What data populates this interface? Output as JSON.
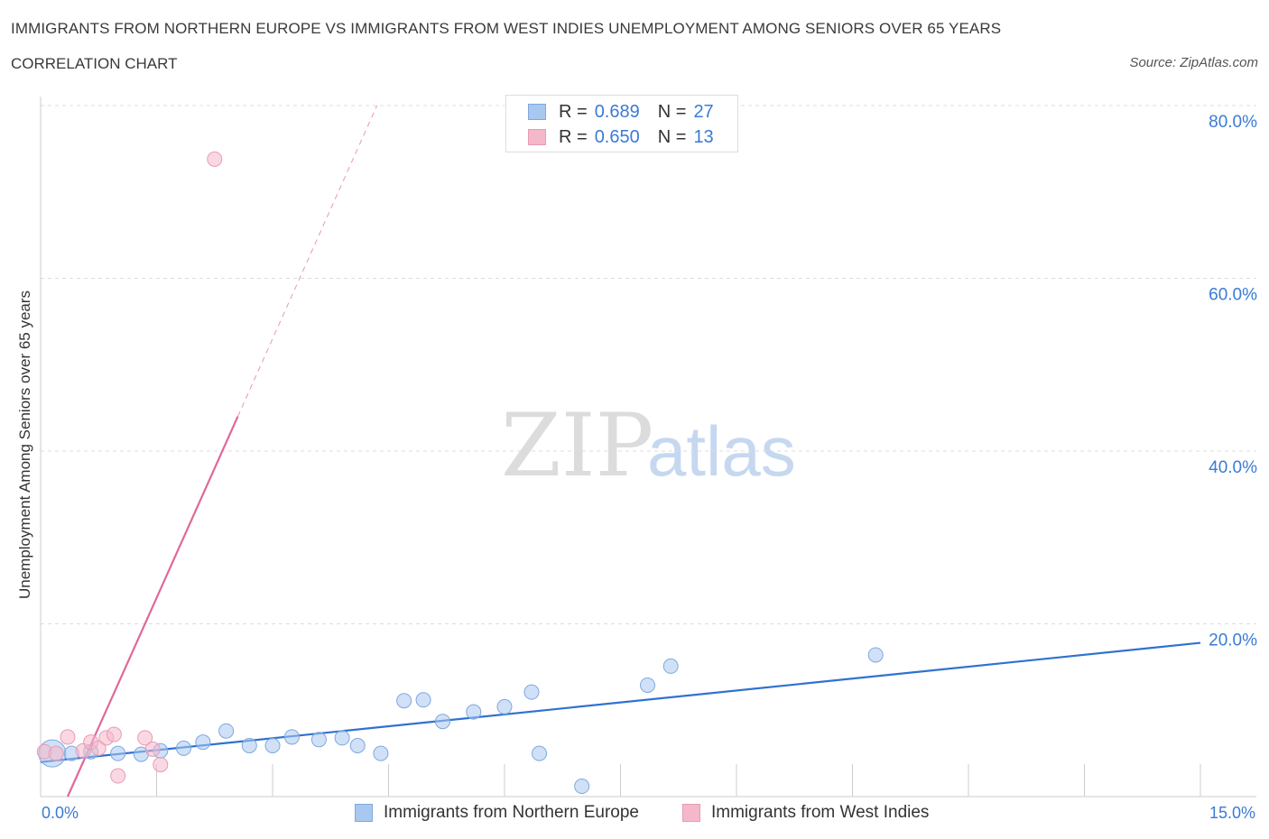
{
  "title": "IMMIGRANTS FROM NORTHERN EUROPE VS IMMIGRANTS FROM WEST INDIES UNEMPLOYMENT AMONG SENIORS OVER 65 YEARS",
  "subtitle": "CORRELATION CHART",
  "source": "Source: ZipAtlas.com",
  "watermark": {
    "zip": "ZIP",
    "atlas": "atlas"
  },
  "legend": {
    "rows": [
      {
        "r_label": "R =",
        "r_value": "0.689",
        "n_label": "N =",
        "n_value": "27",
        "color": "#a9c8f0"
      },
      {
        "r_label": "R =",
        "r_value": "0.650",
        "n_label": "N =",
        "n_value": "13",
        "color": "#f5b8ca"
      }
    ]
  },
  "chart_data": {
    "type": "scatter",
    "title": "IMMIGRANTS FROM NORTHERN EUROPE VS IMMIGRANTS FROM WEST INDIES UNEMPLOYMENT AMONG SENIORS OVER 65 YEARS",
    "xlabel": "",
    "ylabel": "Unemployment Among Seniors over 65 years",
    "xlim": [
      0,
      15
    ],
    "ylim": [
      0,
      80
    ],
    "x_tick_labels": [
      "0.0%",
      "15.0%"
    ],
    "y_tick_labels": [
      "20.0%",
      "40.0%",
      "60.0%",
      "80.0%"
    ],
    "y_ticks": [
      20,
      40,
      60,
      80
    ],
    "series": [
      {
        "name": "Immigrants from Northern Europe",
        "color": "#a9c8f0",
        "line_color": "#2f72d0",
        "trend": {
          "x0": 0.0,
          "y0": 4.0,
          "x1": 15.0,
          "y1": 17.8,
          "solid_until": 15.0
        },
        "points": [
          {
            "x": 0.15,
            "y": 5.0,
            "big": true
          },
          {
            "x": 0.4,
            "y": 5.0
          },
          {
            "x": 0.65,
            "y": 5.2
          },
          {
            "x": 1.0,
            "y": 5.0
          },
          {
            "x": 1.3,
            "y": 4.9
          },
          {
            "x": 1.55,
            "y": 5.3
          },
          {
            "x": 1.85,
            "y": 5.6
          },
          {
            "x": 2.1,
            "y": 6.3
          },
          {
            "x": 2.4,
            "y": 7.6
          },
          {
            "x": 2.7,
            "y": 5.9
          },
          {
            "x": 3.0,
            "y": 5.9
          },
          {
            "x": 3.25,
            "y": 6.9
          },
          {
            "x": 3.6,
            "y": 6.6
          },
          {
            "x": 3.9,
            "y": 6.8
          },
          {
            "x": 4.1,
            "y": 5.9
          },
          {
            "x": 4.4,
            "y": 5.0
          },
          {
            "x": 4.7,
            "y": 11.1
          },
          {
            "x": 4.95,
            "y": 11.2
          },
          {
            "x": 5.2,
            "y": 8.7
          },
          {
            "x": 5.6,
            "y": 9.8
          },
          {
            "x": 6.0,
            "y": 10.4
          },
          {
            "x": 6.35,
            "y": 12.1
          },
          {
            "x": 6.45,
            "y": 5.0
          },
          {
            "x": 7.0,
            "y": 1.2
          },
          {
            "x": 7.85,
            "y": 12.9
          },
          {
            "x": 8.15,
            "y": 15.1
          },
          {
            "x": 10.8,
            "y": 16.4
          }
        ]
      },
      {
        "name": "Immigrants from West Indies",
        "color": "#f5b8ca",
        "line_color": "#e0689a",
        "trend": {
          "x0": 0.35,
          "y0": 0.0,
          "x1": 4.35,
          "y1": 80.0,
          "solid_until": 2.55
        },
        "points": [
          {
            "x": 0.05,
            "y": 5.2
          },
          {
            "x": 0.2,
            "y": 5.0
          },
          {
            "x": 0.35,
            "y": 6.9
          },
          {
            "x": 0.55,
            "y": 5.3
          },
          {
            "x": 0.65,
            "y": 6.3
          },
          {
            "x": 0.75,
            "y": 5.6
          },
          {
            "x": 0.85,
            "y": 6.8
          },
          {
            "x": 0.95,
            "y": 7.2
          },
          {
            "x": 1.0,
            "y": 2.4
          },
          {
            "x": 1.35,
            "y": 6.8
          },
          {
            "x": 1.45,
            "y": 5.5
          },
          {
            "x": 1.55,
            "y": 3.7
          },
          {
            "x": 2.25,
            "y": 73.8
          }
        ]
      }
    ]
  }
}
